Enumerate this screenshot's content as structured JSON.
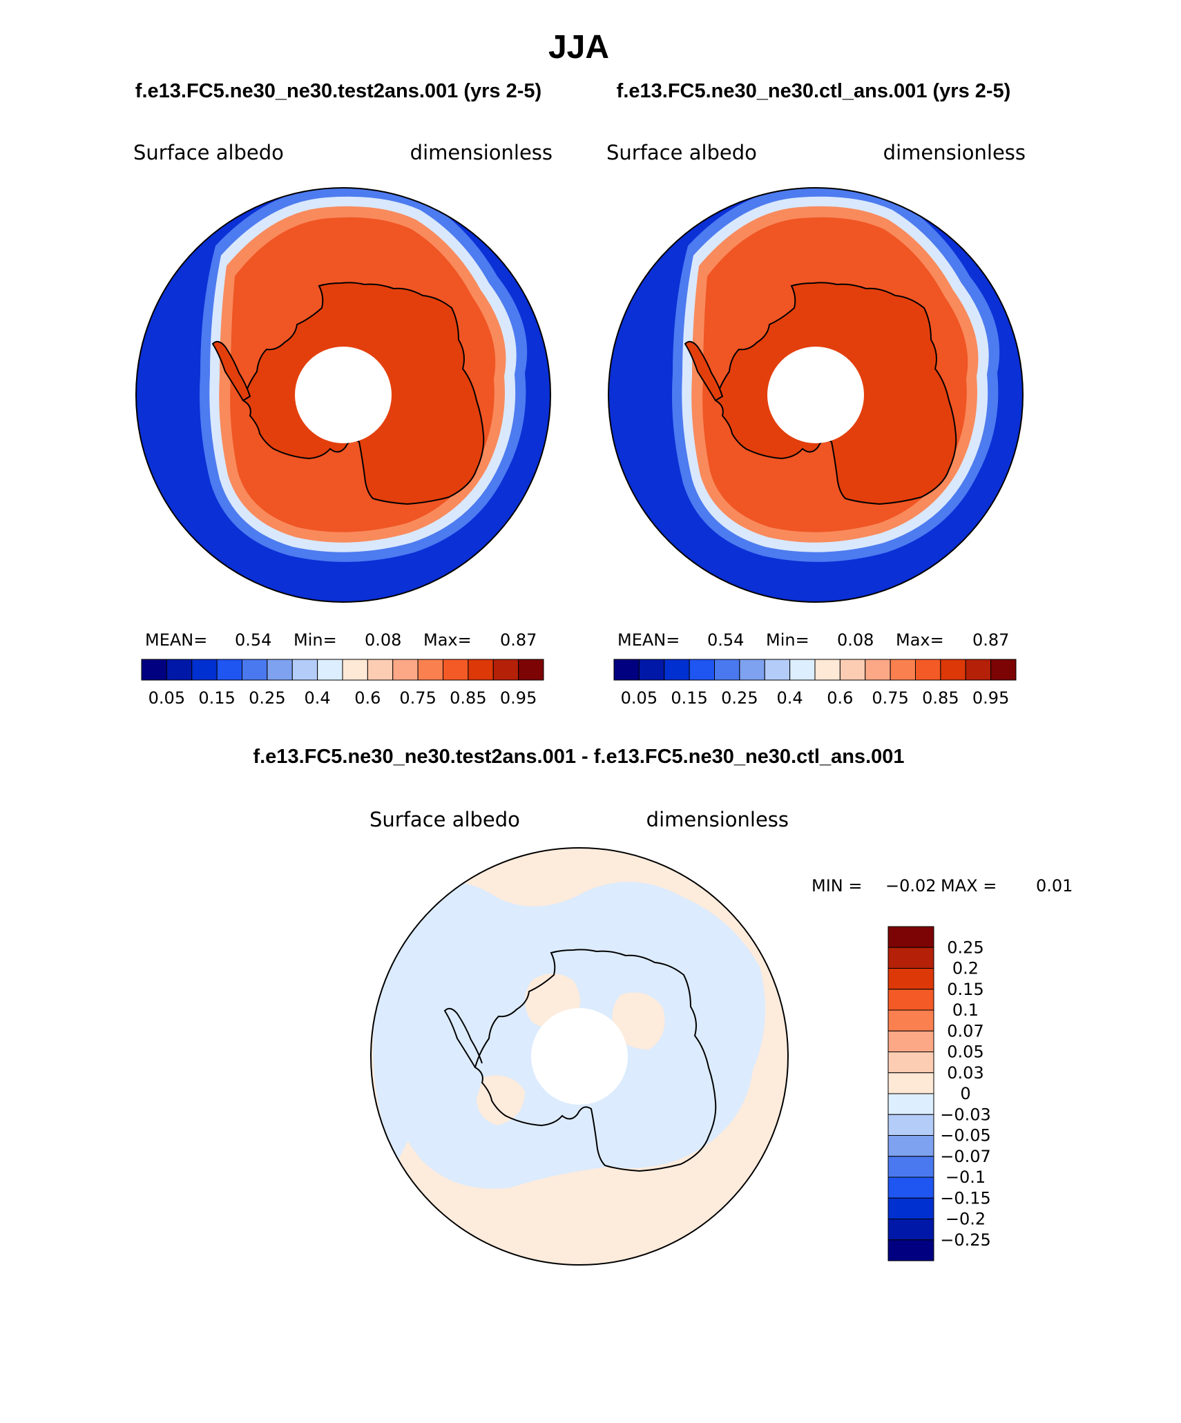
{
  "season": "JJA",
  "panels": [
    {
      "case": "f.e13.FC5.ne30_ne30.test2ans.001 (yrs 2-5)",
      "variable": "Surface albedo",
      "units": "dimensionless",
      "mean_label": "MEAN=",
      "mean": "0.54",
      "min_label": "Min=",
      "min": "0.08",
      "max_label": "Max=",
      "max": "0.87"
    },
    {
      "case": "f.e13.FC5.ne30_ne30.ctl_ans.001 (yrs 2-5)",
      "variable": "Surface albedo",
      "units": "dimensionless",
      "mean_label": "MEAN=",
      "mean": "0.54",
      "min_label": "Min=",
      "min": "0.08",
      "max_label": "Max=",
      "max": "0.87"
    }
  ],
  "abs_colorbar": {
    "colors": [
      "#000080",
      "#0018a8",
      "#0030d0",
      "#1f55f0",
      "#4a78ee",
      "#7ea2f0",
      "#b4ccf8",
      "#ddeefe",
      "#fee8d6",
      "#fdcdb3",
      "#fca886",
      "#fa8050",
      "#f45a26",
      "#dc3808",
      "#b42008",
      "#7c0404"
    ],
    "tick_labels": [
      "0.05",
      "0.15",
      "0.25",
      "0.4",
      "0.6",
      "0.75",
      "0.85",
      "0.95"
    ]
  },
  "diff_panel": {
    "title": "f.e13.FC5.ne30_ne30.test2ans.001 - f.e13.FC5.ne30_ne30.ctl_ans.001",
    "variable": "Surface albedo",
    "units": "dimensionless",
    "min_label": "MIN =",
    "min": "−0.02",
    "max_label": "MAX =",
    "max": "0.01"
  },
  "diff_colorbar": {
    "colors": [
      "#7c0404",
      "#b42008",
      "#dc3808",
      "#f45a26",
      "#fa8050",
      "#fca886",
      "#fdcdb3",
      "#fee8d6",
      "#ddeefe",
      "#b4ccf8",
      "#7ea2f0",
      "#4a78ee",
      "#1f55f0",
      "#0030d0",
      "#0018a8",
      "#000080"
    ],
    "labels": [
      "0.25",
      "0.2",
      "0.15",
      "0.1",
      "0.07",
      "0.05",
      "0.03",
      "0",
      "−0.03",
      "−0.05",
      "−0.07",
      "−0.1",
      "−0.15",
      "−0.2",
      "−0.25"
    ]
  },
  "map_colors": {
    "ocean": "#0a30d6",
    "ice_edge": "#d9e8fc",
    "ice_mid": "#f98a5c",
    "ice_high": "#f05524",
    "land": "#e33f0c",
    "diff_pos": "#fdebdc",
    "diff_neg": "#dcebfd",
    "pole_hole": "#ffffff"
  }
}
